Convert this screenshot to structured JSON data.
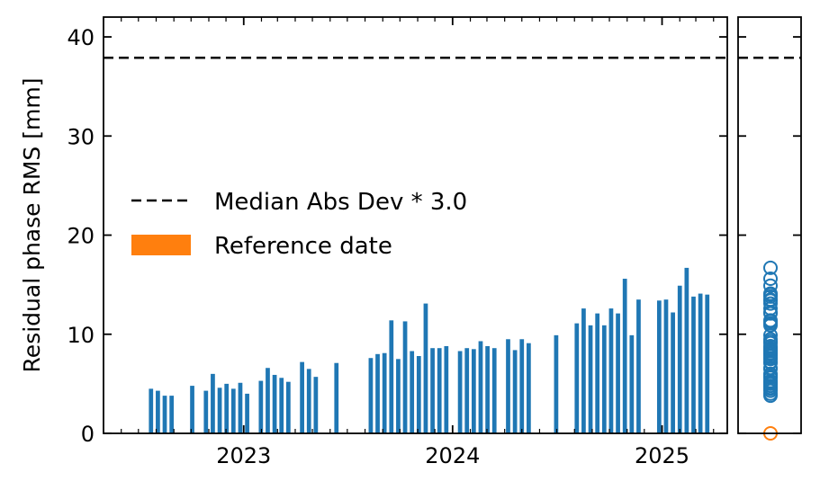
{
  "chart_data": {
    "type": "bar",
    "title": "",
    "xlabel": "",
    "ylabel": "Residual phase RMS [mm]",
    "x_range": [
      "2022-05-01",
      "2025-04-25"
    ],
    "ylim": [
      0,
      42
    ],
    "yticks": [
      0,
      10,
      20,
      30,
      40
    ],
    "xticks": [
      {
        "date": "2023-01-01",
        "label": "2023"
      },
      {
        "date": "2024-01-01",
        "label": "2024"
      },
      {
        "date": "2025-01-01",
        "label": "2025"
      }
    ],
    "grid": false,
    "legend": {
      "placement": "center-left",
      "entries": [
        {
          "label": "Median Abs Dev * 3.0",
          "style": "dashed-line",
          "color": "#000000"
        },
        {
          "label": "Reference date",
          "style": "patch",
          "color": "#ff7f0e"
        }
      ]
    },
    "threshold": 37.9,
    "bar_color": "#1f77b4",
    "reference_color": "#ff7f0e",
    "reference_value": 0,
    "series": [
      {
        "name": "",
        "dates": [
          "2022-07-23",
          "2022-08-04",
          "2022-08-16",
          "2022-08-28",
          "2022-10-03",
          "2022-10-27",
          "2022-11-08",
          "2022-11-20",
          "2022-12-02",
          "2022-12-14",
          "2022-12-26",
          "2023-01-07",
          "2023-01-31",
          "2023-02-12",
          "2023-02-24",
          "2023-03-08",
          "2023-03-20",
          "2023-04-13",
          "2023-04-25",
          "2023-05-07",
          "2023-06-12",
          "2023-08-11",
          "2023-08-23",
          "2023-09-04",
          "2023-09-16",
          "2023-09-28",
          "2023-10-10",
          "2023-10-22",
          "2023-11-03",
          "2023-11-15",
          "2023-11-27",
          "2023-12-09",
          "2023-12-21",
          "2024-01-14",
          "2024-01-26",
          "2024-02-07",
          "2024-02-19",
          "2024-03-02",
          "2024-03-14",
          "2024-04-07",
          "2024-04-19",
          "2024-05-01",
          "2024-05-13",
          "2024-06-30",
          "2024-08-05",
          "2024-08-17",
          "2024-08-29",
          "2024-09-10",
          "2024-09-22",
          "2024-10-04",
          "2024-10-16",
          "2024-10-28",
          "2024-11-09",
          "2024-11-21",
          "2024-12-27",
          "2025-01-08",
          "2025-01-20",
          "2025-02-01",
          "2025-02-13",
          "2025-02-25",
          "2025-03-09",
          "2025-03-21"
        ],
        "values": [
          4.5,
          4.3,
          3.8,
          3.8,
          4.8,
          4.3,
          6.0,
          4.6,
          5.0,
          4.5,
          5.1,
          4.0,
          5.3,
          6.6,
          5.9,
          5.6,
          5.2,
          7.2,
          6.5,
          5.7,
          7.1,
          7.6,
          8.0,
          8.1,
          11.4,
          7.5,
          11.3,
          8.3,
          7.8,
          13.1,
          8.6,
          8.6,
          8.8,
          8.3,
          8.6,
          8.5,
          9.3,
          8.8,
          8.6,
          9.5,
          8.4,
          9.5,
          9.1,
          9.9,
          11.1,
          12.6,
          10.9,
          12.1,
          10.9,
          12.6,
          12.1,
          15.6,
          9.9,
          13.5,
          13.4,
          13.5,
          12.2,
          14.9,
          16.7,
          13.8,
          14.1,
          14.0
        ]
      }
    ],
    "marginal": {
      "type": "scatter",
      "marker": "open-circle",
      "ylim": [
        0,
        42
      ],
      "threshold": 37.9,
      "values": [
        3.8,
        4.0,
        4.3,
        4.5,
        4.6,
        4.8,
        5.0,
        5.1,
        5.2,
        5.3,
        5.6,
        5.7,
        5.9,
        6.0,
        6.5,
        6.6,
        7.1,
        7.2,
        7.5,
        7.6,
        7.8,
        8.0,
        8.1,
        8.3,
        8.4,
        8.5,
        8.6,
        8.8,
        9.1,
        9.3,
        9.5,
        9.9,
        10.9,
        11.1,
        11.3,
        11.4,
        12.1,
        12.2,
        12.6,
        13.1,
        13.4,
        13.5,
        13.8,
        14.0,
        14.1,
        14.9,
        15.6,
        16.7
      ],
      "reference_value": 0
    }
  }
}
